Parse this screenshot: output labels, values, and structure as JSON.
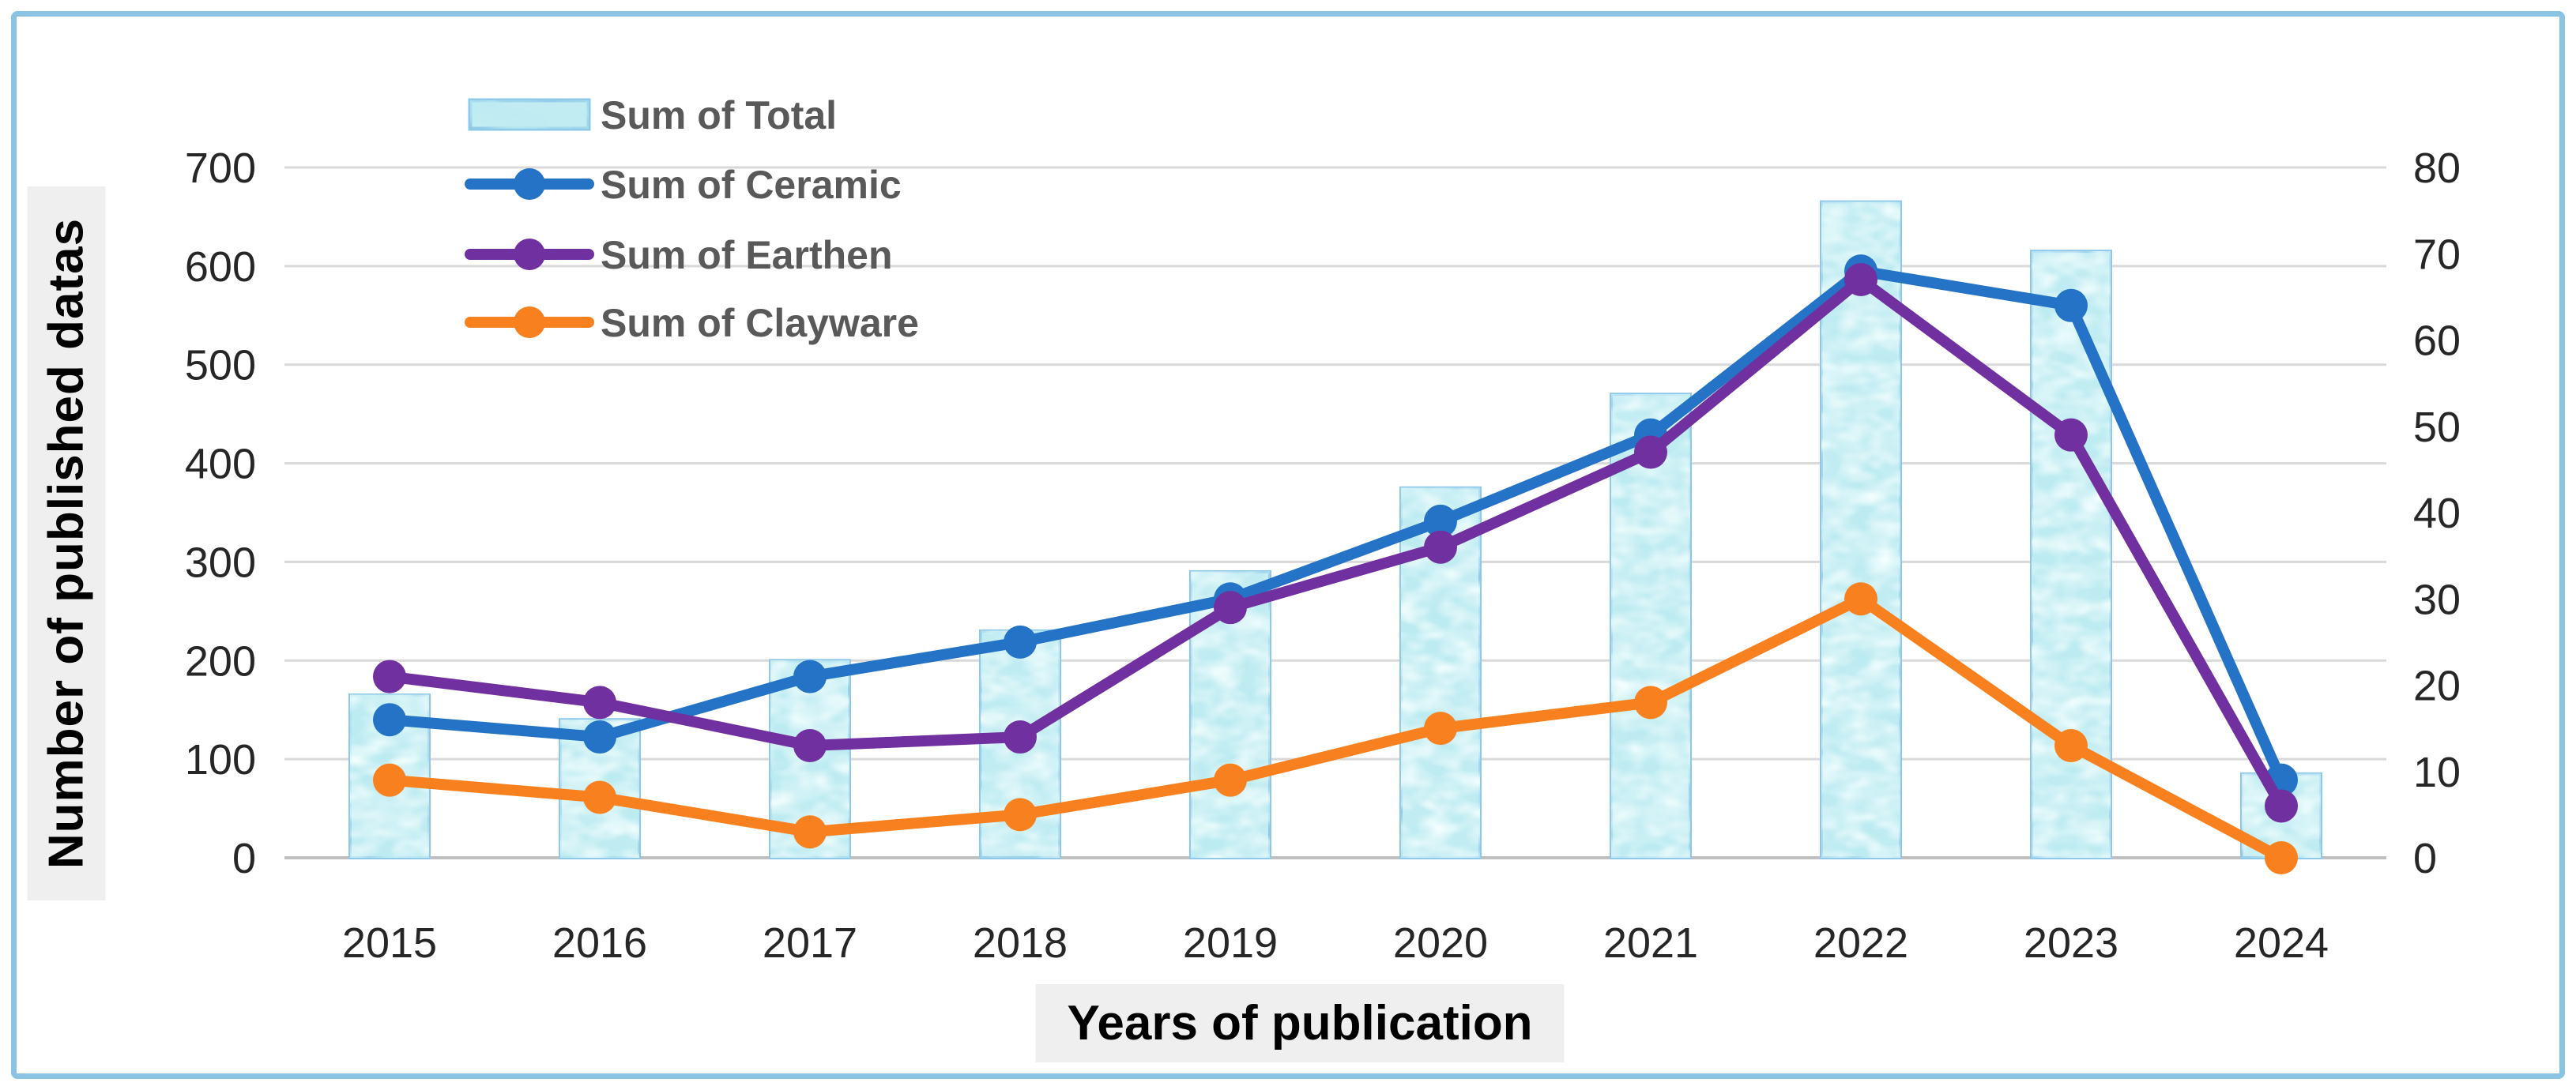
{
  "figure": {
    "background": "#ffffff",
    "frame_border_color": "#8bc3e4",
    "gridline_color": "#d9d9d9",
    "baseline_color": "#bfbfbf",
    "tick_text_color": "#262626",
    "legend_text_color": "#595959",
    "title_bg_color": "#efefef"
  },
  "chart_data": {
    "type": "bar",
    "subtype": "combo-bar-line-dual-axis",
    "title": "",
    "xlabel": "Years of publication",
    "ylabel": "Number of published datas",
    "categories": [
      "2015",
      "2016",
      "2017",
      "2018",
      "2019",
      "2020",
      "2021",
      "2022",
      "2023",
      "2024"
    ],
    "series": [
      {
        "name": "Sum of Total",
        "type": "bar",
        "axis": "left",
        "values": [
          165,
          140,
          200,
          230,
          290,
          375,
          470,
          665,
          615,
          85
        ],
        "fill": "#c4edf3",
        "border": "#8fc9e9"
      },
      {
        "name": "Sum of Ceramic",
        "type": "line",
        "axis": "right",
        "values": [
          16,
          14,
          21,
          25,
          30,
          39,
          49,
          68,
          64,
          9
        ],
        "color": "#2573c6"
      },
      {
        "name": "Sum of Earthen",
        "type": "line",
        "axis": "right",
        "values": [
          21,
          18,
          13,
          14,
          29,
          36,
          47,
          67,
          49,
          6
        ],
        "color": "#7030a0"
      },
      {
        "name": "Sum of Clayware",
        "type": "line",
        "axis": "right",
        "values": [
          9,
          7,
          3,
          5,
          9,
          15,
          18,
          30,
          13,
          0
        ],
        "color": "#f8801f"
      }
    ],
    "left_axis": {
      "min": 0,
      "max": 700,
      "step": 100,
      "ticks": [
        "700",
        "600",
        "500",
        "400",
        "300",
        "200",
        "100",
        "0"
      ]
    },
    "right_axis": {
      "min": 0,
      "max": 80,
      "step": 10,
      "ticks": [
        "80",
        "70",
        "60",
        "50",
        "40",
        "30",
        "20",
        "10",
        "0"
      ]
    },
    "grid": true,
    "legend_position": "top-left-inside"
  }
}
